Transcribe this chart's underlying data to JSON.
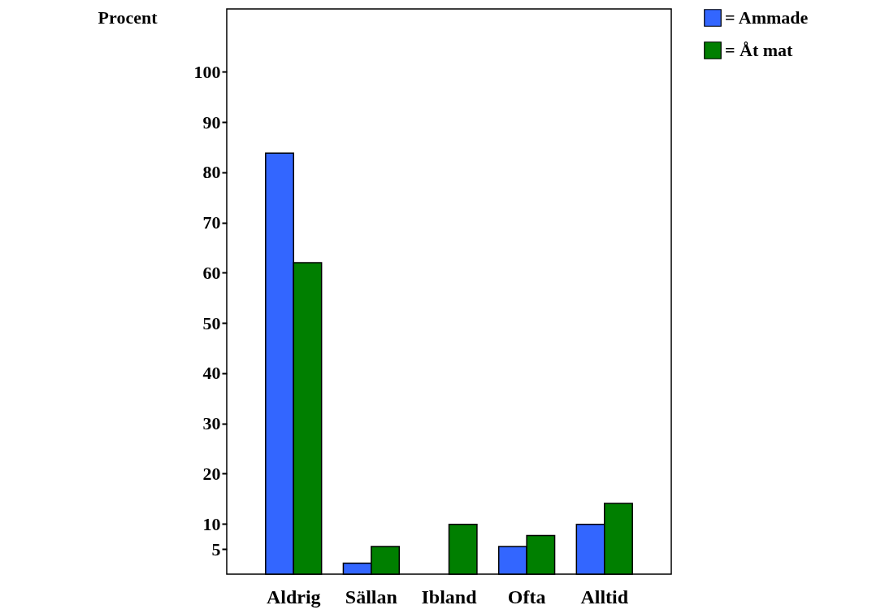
{
  "chart_data": {
    "type": "bar",
    "ylabel": "Procent",
    "categories": [
      "Aldrig",
      "Sällan",
      "Ibland",
      "Ofta",
      "Alltid"
    ],
    "series": [
      {
        "name": "= Ammade",
        "color": "#3366ff",
        "values": [
          83.8,
          2.2,
          null,
          5.5,
          9.9
        ]
      },
      {
        "name": "= Åt mat",
        "color": "#007f00",
        "values": [
          62.0,
          5.5,
          9.9,
          7.7,
          14.1
        ]
      }
    ],
    "ylim": [
      0,
      112.5
    ],
    "yticks": [
      5,
      10,
      20,
      30,
      40,
      50,
      60,
      70,
      80,
      90,
      100
    ],
    "grid": false,
    "legend": "top right"
  }
}
